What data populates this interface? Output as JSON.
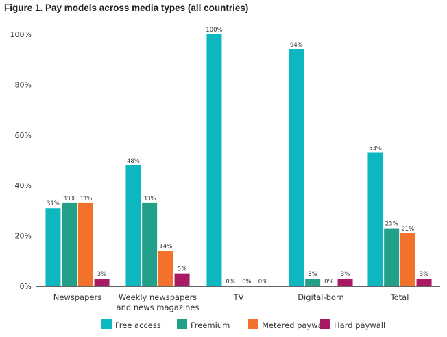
{
  "chart_data": {
    "type": "bar",
    "title": "Figure 1. Pay models across media types (all countries)",
    "xlabel": "",
    "ylabel": "",
    "ylim": [
      0,
      100
    ],
    "yticks": [
      "0%",
      "20%",
      "40%",
      "60%",
      "80%",
      "100%"
    ],
    "categories": [
      "Newspapers",
      "Weekly newspapers\nand news magazines",
      "TV",
      "Digital-born",
      "Total"
    ],
    "series": [
      {
        "name": "Free access",
        "color": "#0cb7bf",
        "values": [
          31,
          48,
          100,
          94,
          53
        ]
      },
      {
        "name": "Freemium",
        "color": "#22a08a",
        "values": [
          33,
          33,
          0,
          3,
          23
        ]
      },
      {
        "name": "Metered paywall",
        "color": "#f2722c",
        "values": [
          33,
          14,
          0,
          0,
          21
        ]
      },
      {
        "name": "Hard paywall",
        "color": "#a81a62",
        "values": [
          3,
          5,
          0,
          3,
          3
        ]
      }
    ],
    "legend": "bottom",
    "grid": false
  }
}
